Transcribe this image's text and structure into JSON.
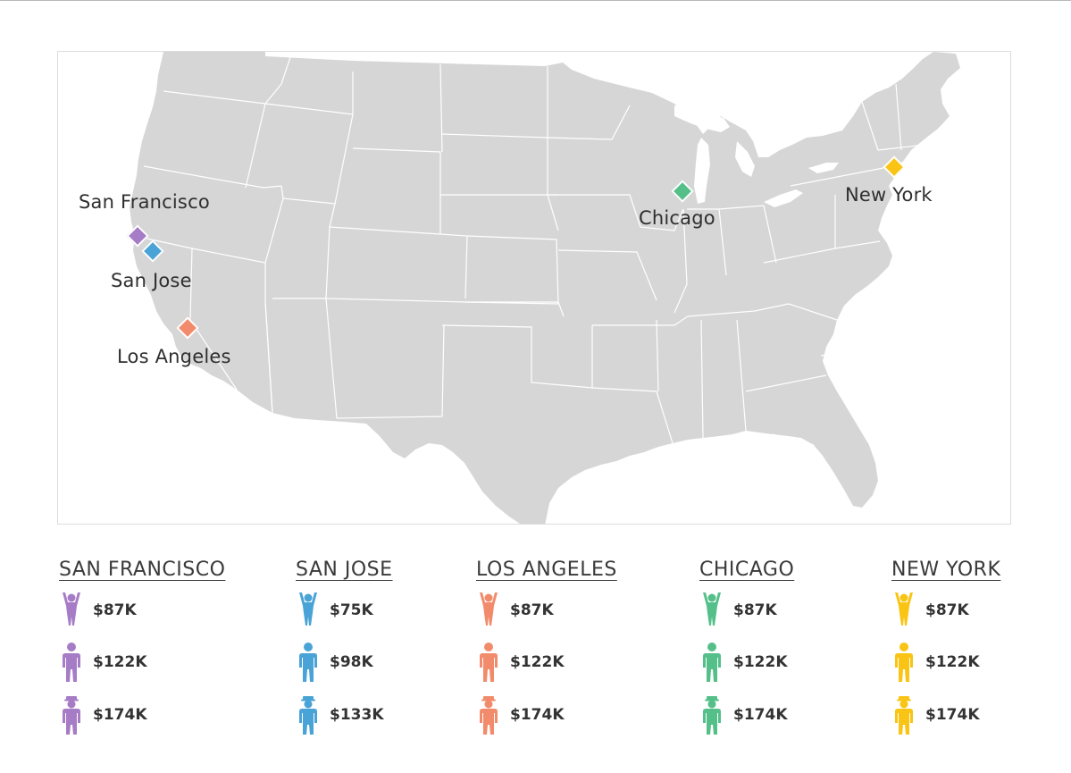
{
  "colors": {
    "san_francisco": "#a57cc5",
    "san_jose": "#4aa3d6",
    "los_angeles": "#f28b6b",
    "chicago": "#55bf8a",
    "new_york": "#f9c414",
    "land": "#d6d6d6",
    "state_border": "#ffffff"
  },
  "map": {
    "cities": [
      {
        "key": "san_francisco",
        "label": "San Francisco"
      },
      {
        "key": "san_jose",
        "label": "San Jose"
      },
      {
        "key": "los_angeles",
        "label": "Los Angeles"
      },
      {
        "key": "chicago",
        "label": "Chicago"
      },
      {
        "key": "new_york",
        "label": "New York"
      }
    ]
  },
  "legend": [
    {
      "key": "san_francisco",
      "title": "SAN FRANCISCO",
      "values": [
        "$87K",
        "$122K",
        "$174K"
      ]
    },
    {
      "key": "san_jose",
      "title": "SAN JOSE",
      "values": [
        "$75K",
        "$98K",
        "$133K"
      ]
    },
    {
      "key": "los_angeles",
      "title": "LOS ANGELES",
      "values": [
        "$87K",
        "$122K",
        "$174K"
      ]
    },
    {
      "key": "chicago",
      "title": "CHICAGO",
      "values": [
        "$87K",
        "$122K",
        "$174K"
      ]
    },
    {
      "key": "new_york",
      "title": "NEW YORK",
      "values": [
        "$87K",
        "$122K",
        "$174K"
      ]
    }
  ],
  "icons": [
    "child-figure-icon",
    "adult-figure-icon",
    "senior-figure-icon"
  ]
}
